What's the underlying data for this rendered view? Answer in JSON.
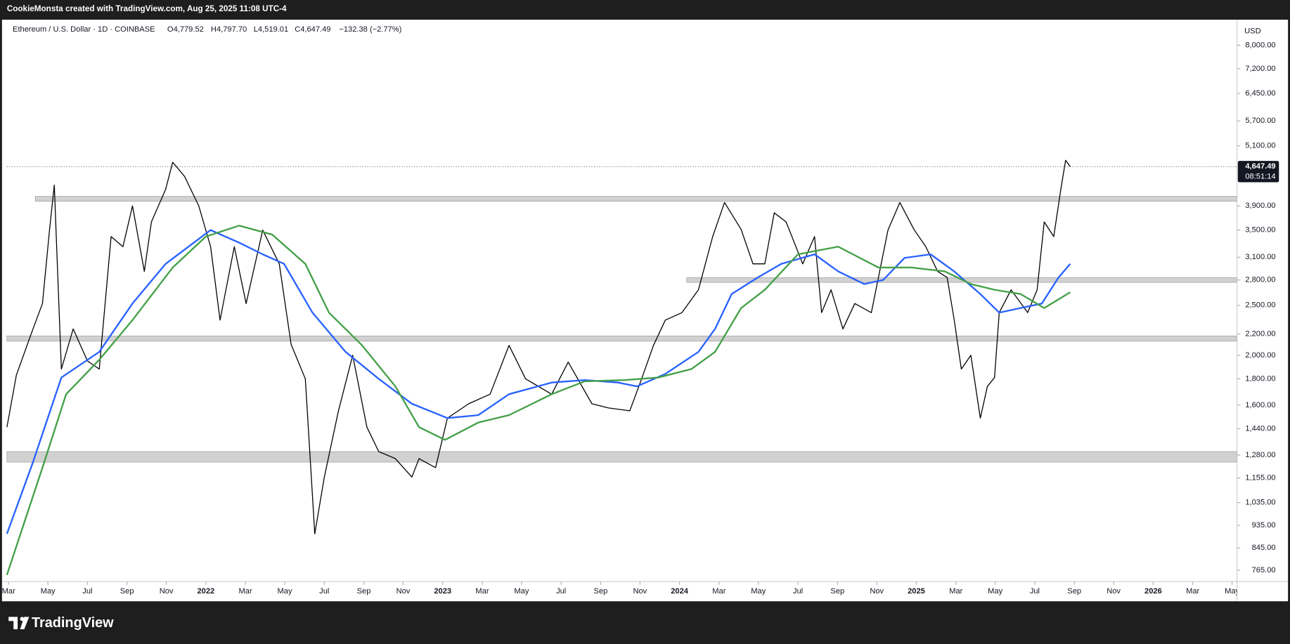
{
  "header": {
    "attribution": "CookieMonsta created with TradingView.com, Aug 25, 2025 11:08 UTC-4"
  },
  "chart_data": {
    "type": "line",
    "title": "Ethereum / U.S. Dollar · 1D · COINBASE",
    "ohlc": [
      "O4,779.52",
      "H4,797.70",
      "L4,519.01",
      "C4,647.49",
      "−132.38 (−2.77%)"
    ],
    "currency": "USD",
    "log_scale": true,
    "grid": false,
    "xlim": [
      2021.16,
      2026.354
    ],
    "ylim": [
      727,
      8965
    ],
    "xticks": [
      {
        "value": 2021.167,
        "label": "Mar"
      },
      {
        "value": 2021.333,
        "label": "May"
      },
      {
        "value": 2021.5,
        "label": "Jul"
      },
      {
        "value": 2021.667,
        "label": "Sep"
      },
      {
        "value": 2021.833,
        "label": "Nov"
      },
      2022,
      {
        "value": 2022.167,
        "label": "Mar"
      },
      {
        "value": 2022.333,
        "label": "May"
      },
      {
        "value": 2022.5,
        "label": "Jul"
      },
      {
        "value": 2022.667,
        "label": "Sep"
      },
      {
        "value": 2022.833,
        "label": "Nov"
      },
      2023,
      {
        "value": 2023.167,
        "label": "Mar"
      },
      {
        "value": 2023.333,
        "label": "May"
      },
      {
        "value": 2023.5,
        "label": "Jul"
      },
      {
        "value": 2023.667,
        "label": "Sep"
      },
      {
        "value": 2023.833,
        "label": "Nov"
      },
      2024,
      {
        "value": 2024.167,
        "label": "Mar"
      },
      {
        "value": 2024.333,
        "label": "May"
      },
      {
        "value": 2024.5,
        "label": "Jul"
      },
      {
        "value": 2024.667,
        "label": "Sep"
      },
      {
        "value": 2024.833,
        "label": "Nov"
      },
      2025,
      {
        "value": 2025.167,
        "label": "Mar"
      },
      {
        "value": 2025.333,
        "label": "May"
      },
      {
        "value": 2025.5,
        "label": "Jul"
      },
      {
        "value": 2025.667,
        "label": "Sep"
      },
      {
        "value": 2025.833,
        "label": "Nov"
      },
      2026,
      {
        "value": 2026.167,
        "label": "Mar"
      },
      {
        "value": 2026.333,
        "label": "May"
      }
    ],
    "yticks": [
      {
        "value": 765,
        "label": "765.00"
      },
      {
        "value": 845,
        "label": "845.00"
      },
      {
        "value": 935,
        "label": "935.00"
      },
      {
        "value": 1035,
        "label": "1,035.00"
      },
      {
        "value": 1155,
        "label": "1,155.00"
      },
      {
        "value": 1280,
        "label": "1,280.00"
      },
      {
        "value": 1440,
        "label": "1,440.00"
      },
      {
        "value": 1600,
        "label": "1,600.00"
      },
      {
        "value": 1800,
        "label": "1,800.00"
      },
      {
        "value": 2000,
        "label": "2,000.00"
      },
      {
        "value": 2200,
        "label": "2,200.00"
      },
      {
        "value": 2500,
        "label": "2,500.00"
      },
      {
        "value": 2800,
        "label": "2,800.00"
      },
      {
        "value": 3100,
        "label": "3,100.00"
      },
      {
        "value": 3500,
        "label": "3,500.00"
      },
      {
        "value": 3900,
        "label": "3,900.00"
      },
      {
        "value": 5100,
        "label": "5,100.00"
      },
      {
        "value": 5700,
        "label": "5,700.00"
      },
      {
        "value": 6450,
        "label": "6,450.00"
      },
      {
        "value": 7200,
        "label": "7,200.00"
      },
      {
        "value": 8000,
        "label": "8,000.00"
      }
    ],
    "zones": [
      {
        "range": [
          3980,
          4070
        ],
        "start": 2021.28
      },
      {
        "range": [
          2770,
          2830
        ],
        "start": 2024.03
      },
      {
        "range": [
          2130,
          2180
        ],
        "start": 2021.16
      },
      {
        "range": [
          1240,
          1300
        ],
        "start": 2021.16
      }
    ],
    "series": [
      {
        "name": "Ethereum / U.S. Dollar",
        "color": "#000000",
        "x": [
          2021.16,
          2021.2,
          2021.27,
          2021.31,
          2021.34,
          2021.36,
          2021.39,
          2021.44,
          2021.5,
          2021.55,
          2021.6,
          2021.65,
          2021.69,
          2021.74,
          2021.77,
          2021.83,
          2021.86,
          2021.91,
          2021.97,
          2022.02,
          2022.06,
          2022.12,
          2022.17,
          2022.24,
          2022.31,
          2022.36,
          2022.42,
          2022.46,
          2022.5,
          2022.56,
          2022.62,
          2022.68,
          2022.73,
          2022.8,
          2022.87,
          2022.9,
          2022.97,
          2023.02,
          2023.11,
          2023.2,
          2023.28,
          2023.35,
          2023.46,
          2023.53,
          2023.63,
          2023.7,
          2023.79,
          2023.84,
          2023.89,
          2023.94,
          2024.01,
          2024.08,
          2024.14,
          2024.19,
          2024.26,
          2024.31,
          2024.36,
          2024.4,
          2024.45,
          2024.52,
          2024.57,
          2024.6,
          2024.64,
          2024.69,
          2024.74,
          2024.81,
          2024.88,
          2024.93,
          2024.99,
          2025.04,
          2025.09,
          2025.13,
          2025.16,
          2025.19,
          2025.23,
          2025.27,
          2025.3,
          2025.33,
          2025.35,
          2025.4,
          2025.47,
          2025.51,
          2025.54,
          2025.58,
          2025.61,
          2025.63,
          2025.65
        ],
        "values": [
          1450,
          1830,
          2250,
          2520,
          3500,
          4280,
          1880,
          2250,
          1950,
          1880,
          3400,
          3250,
          3900,
          2910,
          3630,
          4200,
          4740,
          4450,
          3900,
          3250,
          2340,
          3250,
          2520,
          3500,
          3010,
          2100,
          1800,
          900,
          1160,
          1560,
          2000,
          1450,
          1300,
          1260,
          1160,
          1260,
          1210,
          1510,
          1610,
          1680,
          2090,
          1800,
          1680,
          1940,
          1610,
          1580,
          1560,
          1800,
          2090,
          2340,
          2420,
          2680,
          3400,
          3960,
          3510,
          3010,
          3010,
          3780,
          3630,
          3010,
          3400,
          2420,
          2680,
          2250,
          2520,
          2420,
          3500,
          3960,
          3510,
          3250,
          2910,
          2830,
          2340,
          1880,
          2000,
          1510,
          1740,
          1810,
          2420,
          2680,
          2420,
          2680,
          3630,
          3400,
          4200,
          4780,
          4647
        ]
      },
      {
        "color": "#2962ff",
        "x": [
          2021.16,
          2021.27,
          2021.39,
          2021.55,
          2021.69,
          2021.83,
          2022.02,
          2022.14,
          2022.24,
          2022.33,
          2022.45,
          2022.59,
          2022.73,
          2022.87,
          2023.02,
          2023.15,
          2023.28,
          2023.46,
          2023.6,
          2023.74,
          2023.82,
          2023.94,
          2024.08,
          2024.15,
          2024.22,
          2024.33,
          2024.43,
          2024.57,
          2024.67,
          2024.78,
          2024.86,
          2024.95,
          2025.06,
          2025.16,
          2025.27,
          2025.35,
          2025.44,
          2025.53,
          2025.6,
          2025.65
        ],
        "values": [
          900,
          1240,
          1810,
          2030,
          2520,
          3010,
          3500,
          3310,
          3140,
          3010,
          2420,
          2030,
          1800,
          1610,
          1510,
          1530,
          1680,
          1770,
          1790,
          1770,
          1740,
          1840,
          2030,
          2250,
          2630,
          2830,
          3010,
          3140,
          2910,
          2750,
          2800,
          3090,
          3140,
          2910,
          2630,
          2420,
          2470,
          2520,
          2830,
          3010
        ]
      },
      {
        "color": "#43a047",
        "x": [
          2021.16,
          2021.31,
          2021.41,
          2021.55,
          2021.69,
          2021.86,
          2022.0,
          2022.14,
          2022.28,
          2022.42,
          2022.52,
          2022.66,
          2022.8,
          2022.9,
          2023.01,
          2023.15,
          2023.28,
          2023.46,
          2023.6,
          2023.77,
          2023.91,
          2024.05,
          2024.15,
          2024.26,
          2024.36,
          2024.5,
          2024.67,
          2024.84,
          2024.98,
          2025.12,
          2025.23,
          2025.33,
          2025.44,
          2025.54,
          2025.65
        ],
        "values": [
          749,
          1210,
          1680,
          1960,
          2340,
          2960,
          3400,
          3570,
          3430,
          3010,
          2420,
          2090,
          1740,
          1450,
          1370,
          1480,
          1530,
          1680,
          1780,
          1790,
          1810,
          1880,
          2030,
          2470,
          2680,
          3140,
          3250,
          2960,
          2960,
          2910,
          2750,
          2680,
          2630,
          2470,
          2650
        ]
      }
    ],
    "last_price": {
      "value": 4647.49,
      "label": "4,647.49"
    },
    "countdown": "08:51:14"
  },
  "footer": {
    "brand": "TradingView"
  }
}
